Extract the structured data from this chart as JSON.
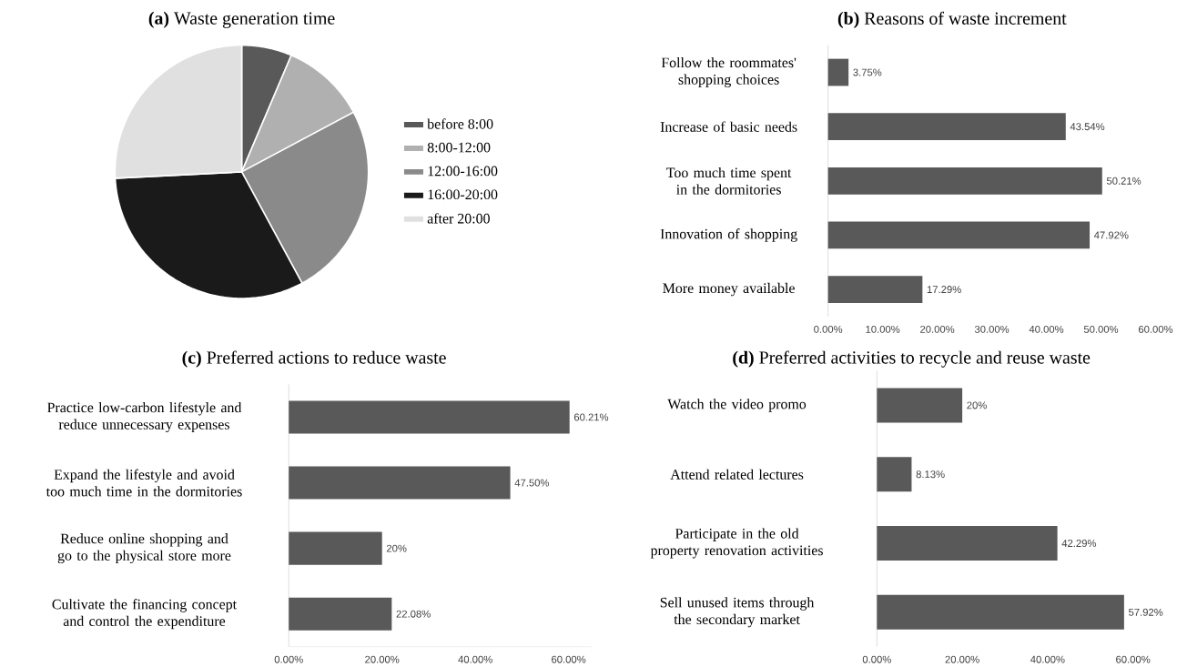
{
  "chart_data": [
    {
      "type": "pie",
      "title": "**(a)** Waste generation time",
      "categories": [
        "before 8:00",
        "8:00-12:00",
        "12:00-16:00",
        "16:00-20:00",
        "after 20:00"
      ],
      "values": [
        6.4,
        10.8,
        24.9,
        32.1,
        25.8
      ],
      "colors": [
        "#595959",
        "#b0b0b0",
        "#8a8a8a",
        "#1a1a1a",
        "#e0e0e0"
      ],
      "legend": "right"
    },
    {
      "type": "bar",
      "orientation": "horizontal",
      "title": "**(b)** Reasons of waste increment",
      "categories": [
        "Follow the roommates' shopping choices",
        "Increase of basic needs",
        "Too much time spent in the dormitories",
        "Innovation of shopping",
        "More money available"
      ],
      "values": [
        3.75,
        43.54,
        50.21,
        47.92,
        17.29
      ],
      "value_labels": [
        "3.75%",
        "43.54%",
        "50.21%",
        "47.92%",
        "17.29%"
      ],
      "color": "#595959",
      "xlim": [
        0,
        60
      ],
      "xticks": [
        {
          "value": 0,
          "label": "0.00%"
        },
        {
          "value": 10,
          "label": "10.00%"
        },
        {
          "value": 20,
          "label": "20.00%"
        },
        {
          "value": 30,
          "label": "30.00%"
        },
        {
          "value": 40,
          "label": "40.00%"
        },
        {
          "value": 50,
          "label": "50.00%"
        },
        {
          "value": 60,
          "label": "60.00%"
        }
      ]
    },
    {
      "type": "bar",
      "orientation": "horizontal",
      "title": "**(c)** Preferred actions to reduce waste",
      "categories": [
        "Practice low-carbon lifestyle and reduce unnecessary expenses",
        "Expand the lifestyle and avoid too much time in the dormitories",
        "Reduce online shopping and go to the physical store more",
        "Cultivate the financing concept and control the expenditure"
      ],
      "values": [
        60.21,
        47.5,
        20,
        22.08
      ],
      "value_labels": [
        "60.21%",
        "47.50%",
        "20%",
        "22.08%"
      ],
      "color": "#595959",
      "xlim": [
        0,
        65
      ],
      "xticks": [
        {
          "value": 0,
          "label": "0.00%"
        },
        {
          "value": 20,
          "label": "20.00%"
        },
        {
          "value": 40,
          "label": "40.00%"
        },
        {
          "value": 60,
          "label": "60.00%"
        }
      ]
    },
    {
      "type": "bar",
      "orientation": "horizontal",
      "title": "**(d)** Preferred activities to recycle and reuse waste",
      "categories": [
        "Watch the video promo",
        "Attend related lectures",
        "Participate in the old property renovation activities",
        "Sell unused items through the secondary market"
      ],
      "values": [
        20,
        8.13,
        42.29,
        57.92
      ],
      "value_labels": [
        "20%",
        "8.13%",
        "42.29%",
        "57.92%"
      ],
      "color": "#595959",
      "xlim": [
        0,
        60
      ],
      "xticks": [
        {
          "value": 0,
          "label": "0.00%"
        },
        {
          "value": 20,
          "label": "20.00%"
        },
        {
          "value": 40,
          "label": "40.00%"
        },
        {
          "value": 60,
          "label": "60.00%"
        }
      ]
    }
  ]
}
